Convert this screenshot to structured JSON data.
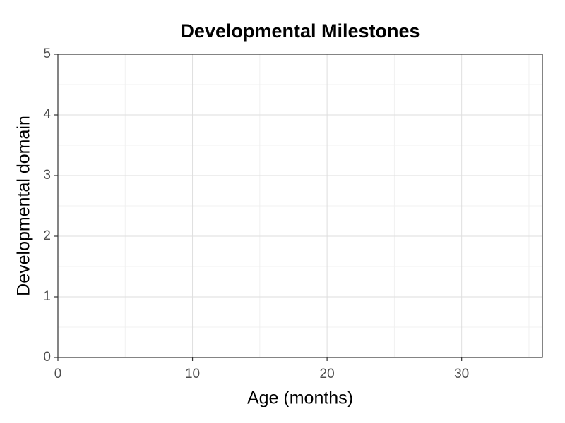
{
  "chart_data": {
    "type": "scatter",
    "title": "Developmental Milestones",
    "x_label": "Age (months)",
    "y_label": "Developmental domain",
    "x": [],
    "values": [],
    "xlim": [
      0,
      36
    ],
    "xticks": [
      0,
      10,
      20,
      30
    ],
    "xminor": [
      5,
      15,
      25,
      35
    ],
    "ylim": [
      0,
      5
    ],
    "yticks": [
      0,
      1,
      2,
      3,
      4,
      5
    ],
    "yminor": [
      0.5,
      1.5,
      2.5,
      3.5,
      4.5
    ],
    "grid": true
  }
}
